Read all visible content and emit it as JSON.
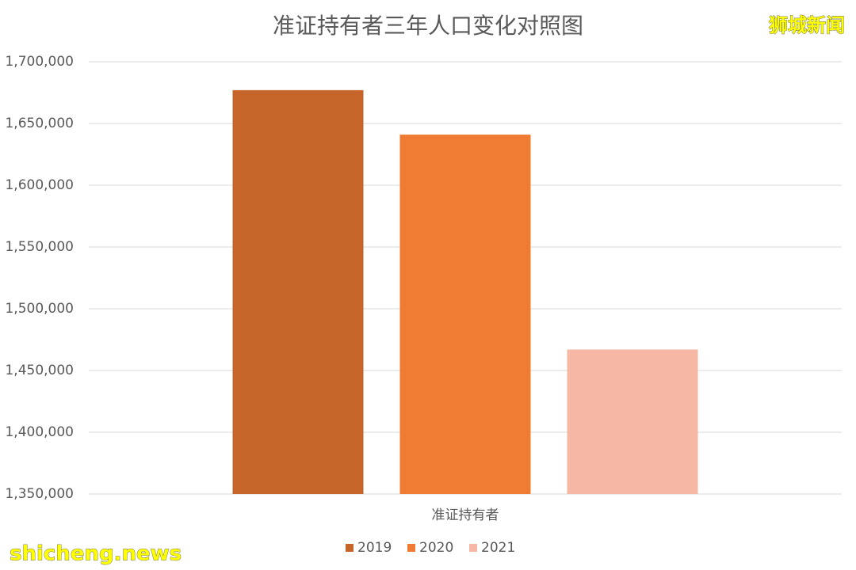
{
  "chart_data": {
    "type": "bar",
    "title": "准证持有者三年人口变化对照图",
    "categories": [
      "准证持有者"
    ],
    "series": [
      {
        "name": "2019",
        "color": "#c5652a",
        "values": [
          1677000
        ]
      },
      {
        "name": "2020",
        "color": "#f07b32",
        "values": [
          1641000
        ]
      },
      {
        "name": "2021",
        "color": "#f6b8a5",
        "values": [
          1467000
        ]
      }
    ],
    "ylim": [
      1350000,
      1700000
    ],
    "yticks": [
      {
        "value": 1350000,
        "label": "1,350,000"
      },
      {
        "value": 1400000,
        "label": "1,400,000"
      },
      {
        "value": 1450000,
        "label": "1,450,000"
      },
      {
        "value": 1500000,
        "label": "1,500,000"
      },
      {
        "value": 1550000,
        "label": "1,550,000"
      },
      {
        "value": 1600000,
        "label": "1,600,000"
      },
      {
        "value": 1650000,
        "label": "1,650,000"
      },
      {
        "value": 1700000,
        "label": "1,700,000"
      }
    ],
    "grid": true,
    "legend": "bottom",
    "watermarks": [
      "狮城新闻",
      "shicheng.news"
    ]
  }
}
